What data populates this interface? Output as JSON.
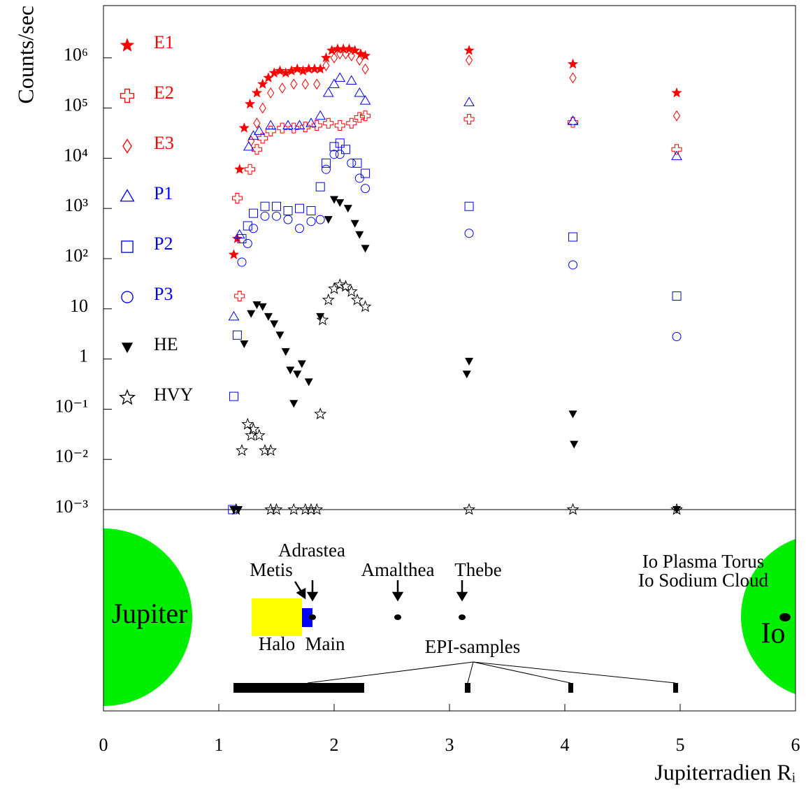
{
  "chart_data": {
    "type": "scatter",
    "y_label": "Counts/sec",
    "x_label": "Jupiterradien Rᵢ",
    "y_log": true,
    "xlim": [
      0,
      6
    ],
    "xticks": [
      0,
      1,
      2,
      3,
      4,
      5,
      6
    ],
    "ylim": [
      0.001,
      11000000
    ],
    "yticks": [
      {
        "value": 0.001,
        "label": "10⁻³"
      },
      {
        "value": 0.01,
        "label": "10⁻²"
      },
      {
        "value": 0.1,
        "label": "10⁻¹"
      },
      1,
      10,
      {
        "value": 100,
        "label": "10²"
      },
      {
        "value": 1000,
        "label": "10³"
      },
      {
        "value": 10000,
        "label": "10⁴"
      },
      {
        "value": 100000,
        "label": "10⁵"
      },
      {
        "value": 1000000,
        "label": "10⁶"
      }
    ],
    "series": [
      {
        "name": "E1",
        "color": "#ff0000",
        "marker": "star",
        "x": [
          1.13,
          1.16,
          1.18,
          1.22,
          1.27,
          1.33,
          1.38,
          1.43,
          1.48,
          1.53,
          1.58,
          1.63,
          1.68,
          1.73,
          1.78,
          1.83,
          1.88,
          1.93,
          1.98,
          2.03,
          2.08,
          2.13,
          2.18,
          2.23,
          2.27,
          3.17,
          4.07,
          4.97
        ],
        "values": [
          120,
          250,
          6000,
          40000,
          120000,
          200000,
          300000,
          400000,
          500000,
          550000,
          500000,
          550000,
          600000,
          550000,
          600000,
          600000,
          600000,
          1000000,
          1400000,
          1500000,
          1500000,
          1500000,
          1400000,
          1200000,
          1100000,
          1400000,
          750000,
          200000
        ]
      },
      {
        "name": "E2",
        "color": "#ff0000",
        "marker": "cross",
        "x": [
          1.16,
          1.18,
          1.27,
          1.33,
          1.38,
          1.45,
          1.55,
          1.65,
          1.75,
          1.85,
          1.95,
          2.05,
          2.15,
          2.22,
          2.27,
          3.17,
          4.07,
          4.97
        ],
        "values": [
          1600,
          18,
          6000,
          15000,
          25000,
          35000,
          40000,
          40000,
          42000,
          45000,
          50000,
          45000,
          50000,
          65000,
          70000,
          60000,
          52000,
          15000
        ]
      },
      {
        "name": "E3",
        "color": "#ff0000",
        "marker": "diamond",
        "x": [
          1.28,
          1.33,
          1.38,
          1.45,
          1.55,
          1.65,
          1.75,
          1.85,
          1.93,
          2.0,
          2.05,
          2.1,
          2.15,
          2.22,
          2.27,
          3.17,
          4.07,
          4.97
        ],
        "values": [
          22000,
          50000,
          100000,
          200000,
          250000,
          300000,
          300000,
          300000,
          700000,
          1000000,
          1200000,
          1200000,
          1100000,
          900000,
          600000,
          900000,
          400000,
          70000
        ]
      },
      {
        "name": "P1",
        "color": "#0000ff",
        "marker": "triangle",
        "x": [
          1.13,
          1.18,
          1.26,
          1.3,
          1.35,
          1.45,
          1.6,
          1.7,
          1.8,
          1.88,
          1.95,
          2.0,
          2.05,
          2.15,
          2.22,
          2.27,
          3.17,
          4.07,
          4.97
        ],
        "values": [
          7,
          300,
          17000,
          28000,
          35000,
          45000,
          45000,
          45000,
          50000,
          70000,
          200000,
          300000,
          400000,
          350000,
          200000,
          140000,
          130000,
          55000,
          11000
        ]
      },
      {
        "name": "P2",
        "color": "#0000ff",
        "marker": "square",
        "x": [
          1.12,
          1.13,
          1.16,
          1.2,
          1.25,
          1.3,
          1.4,
          1.5,
          1.6,
          1.7,
          1.8,
          1.88,
          1.93,
          2.0,
          2.05,
          2.1,
          2.2,
          2.27,
          3.17,
          4.07,
          4.97
        ],
        "values": [
          0.001,
          0.18,
          3,
          250,
          450,
          800,
          1100,
          1100,
          900,
          1000,
          900,
          2700,
          8000,
          17000,
          20000,
          15000,
          8000,
          5000,
          1100,
          270,
          18
        ]
      },
      {
        "name": "P3",
        "color": "#0000ff",
        "marker": "circle",
        "x": [
          1.2,
          1.25,
          1.3,
          1.4,
          1.5,
          1.6,
          1.7,
          1.8,
          1.88,
          1.93,
          2.0,
          2.05,
          2.15,
          2.22,
          2.27,
          3.17,
          4.07,
          4.97
        ],
        "values": [
          85,
          200,
          400,
          700,
          700,
          600,
          400,
          550,
          600,
          6000,
          12000,
          12000,
          8000,
          4000,
          2500,
          320,
          75,
          2.8
        ]
      },
      {
        "name": "HE",
        "color": "#000000",
        "marker": "triangle-down",
        "x": [
          1.13,
          1.17,
          1.22,
          1.28,
          1.33,
          1.38,
          1.43,
          1.48,
          1.53,
          1.58,
          1.62,
          1.65,
          1.68,
          1.72,
          1.78,
          1.88,
          1.95,
          2.0,
          2.05,
          2.12,
          2.18,
          2.22,
          2.27,
          3.15,
          3.17,
          4.07,
          4.08,
          4.97
        ],
        "values": [
          0.001,
          0.001,
          2,
          8,
          12,
          11,
          7,
          5,
          3,
          1.4,
          0.6,
          0.13,
          0.5,
          0.8,
          0.35,
          7,
          600,
          1500,
          1300,
          1000,
          500,
          300,
          160,
          0.5,
          0.9,
          0.08,
          0.02,
          0.001
        ]
      },
      {
        "name": "HVY",
        "color": "#000000",
        "marker": "open-star",
        "x": [
          1.15,
          1.2,
          1.25,
          1.28,
          1.3,
          1.35,
          1.4,
          1.45,
          1.45,
          1.5,
          1.65,
          1.75,
          1.8,
          1.85,
          1.88,
          1.9,
          1.95,
          2.0,
          2.05,
          2.1,
          2.15,
          2.2,
          2.27,
          3.17,
          4.07,
          4.97
        ],
        "values": [
          0.001,
          0.015,
          0.05,
          0.03,
          0.04,
          0.03,
          0.015,
          0.015,
          0.001,
          0.001,
          0.001,
          0.001,
          0.001,
          0.001,
          0.08,
          6,
          15,
          25,
          30,
          28,
          22,
          15,
          11,
          0.001,
          0.001,
          0.001
        ]
      }
    ]
  },
  "diagram": {
    "labels": {
      "jupiter": "Jupiter",
      "adrastea": "Adrastea",
      "metis": "Metis",
      "amalthea": "Amalthea",
      "thebe": "Thebe",
      "torus": "Io Plasma Torus",
      "sodium": "Io Sodium Cloud",
      "io": "Io",
      "halo": "Halo",
      "main": "Main",
      "samples": "EPI-samples"
    }
  }
}
